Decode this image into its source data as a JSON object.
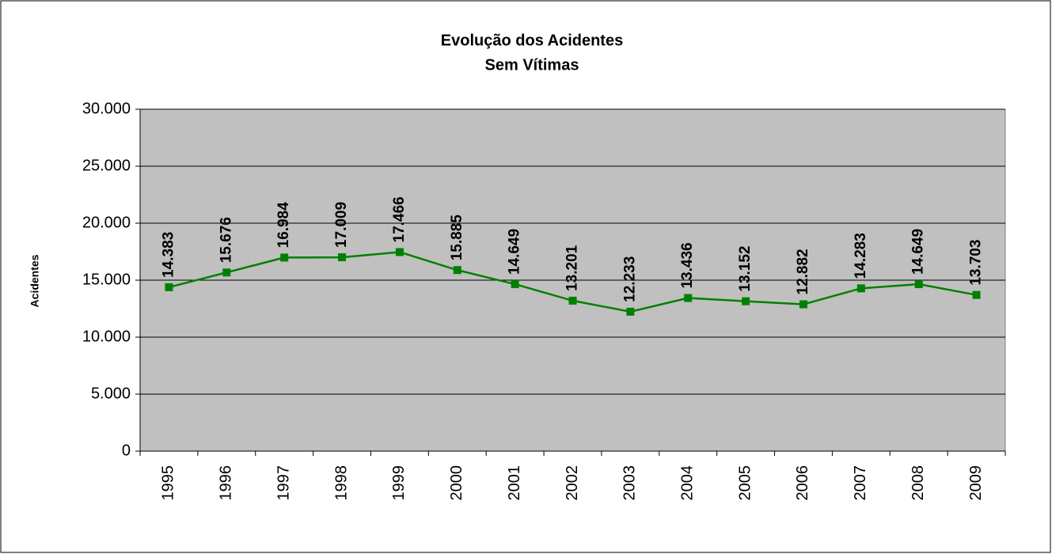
{
  "chart_data": {
    "type": "line",
    "title": "Evolução dos Acidentes",
    "subtitle": "Sem Vítimas",
    "y_label": "Acidentes",
    "categories": [
      "1995",
      "1996",
      "1997",
      "1998",
      "1999",
      "2000",
      "2001",
      "2002",
      "2003",
      "2004",
      "2005",
      "2006",
      "2007",
      "2008",
      "2009"
    ],
    "series": [
      {
        "name": "Acidentes",
        "color": "#008000",
        "values": [
          14383,
          15676,
          16984,
          17009,
          17466,
          15885,
          14649,
          13201,
          12233,
          13436,
          13152,
          12882,
          14283,
          14649,
          13703
        ],
        "value_labels": [
          "14.383",
          "15.676",
          "16.984",
          "17.009",
          "17.466",
          "15.885",
          "14.649",
          "13.201",
          "12.233",
          "13.436",
          "13.152",
          "12.882",
          "14.283",
          "14.649",
          "13.703"
        ]
      }
    ],
    "ylim": [
      0,
      30000
    ],
    "yticks": [
      0,
      {
        "value": 5000,
        "label": "5.000"
      },
      {
        "value": 10000,
        "label": "10.000"
      },
      {
        "value": 15000,
        "label": "15.000"
      },
      {
        "value": 20000,
        "label": "20.000"
      },
      {
        "value": 25000,
        "label": "25.000"
      },
      {
        "value": 30000,
        "label": "30.000"
      }
    ],
    "grid": true,
    "plot_background": "#c0c0c0"
  }
}
